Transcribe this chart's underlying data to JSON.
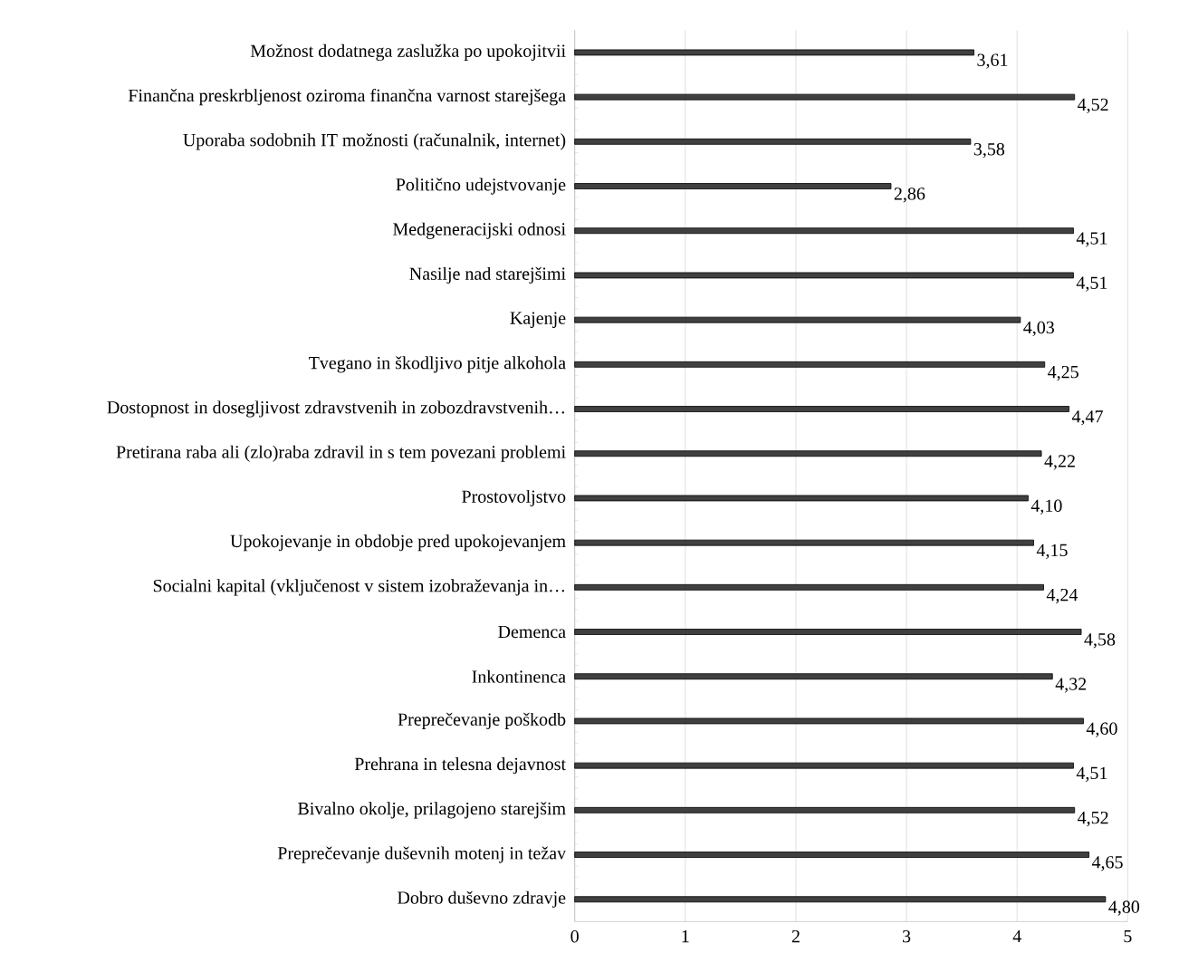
{
  "chart_data": {
    "type": "bar",
    "orientation": "horizontal",
    "categories": [
      "Možnost dodatnega zaslužka po upokojitvii",
      "Finančna preskrbljenost oziroma finančna varnost starejšega",
      "Uporaba sodobnih IT možnosti (računalnik, internet)",
      "Politično udejstvovanje",
      "Medgeneracijski odnosi",
      "Nasilje nad starejšimi",
      "Kajenje",
      "Tvegano in škodljivo pitje alkohola",
      "Dostopnost in dosegljivost  zdravstvenih in zobozdravstvenih…",
      "Pretirana raba ali (zlo)raba zdravil in s tem povezani problemi",
      "Prostovoljstvo",
      "Upokojevanje in obdobje pred upokojevanjem",
      "Socialni kapital (vključenost v sistem izobraževanja in…",
      "Demenca",
      "Inkontinenca",
      "Preprečevanje poškodb",
      "Prehrana in telesna dejavnost",
      "Bivalno okolje, prilagojeno starejšim",
      "Preprečevanje duševnih motenj in težav",
      "Dobro duševno zdravje"
    ],
    "values": [
      3.61,
      4.52,
      3.58,
      2.86,
      4.51,
      4.51,
      4.03,
      4.25,
      4.47,
      4.22,
      4.1,
      4.15,
      4.24,
      4.58,
      4.32,
      4.6,
      4.51,
      4.52,
      4.65,
      4.8
    ],
    "value_labels": [
      "3,61",
      "4,52",
      "3,58",
      "2,86",
      "4,51",
      "4,51",
      "4,03",
      "4,25",
      "4,47",
      "4,22",
      "4,10",
      "4,15",
      "4,24",
      "4,58",
      "4,32",
      "4,60",
      "4,51",
      "4,52",
      "4,65",
      "4,80"
    ],
    "color": "#404040",
    "xlim": [
      0,
      5
    ],
    "xticks": [
      0,
      1,
      2,
      3,
      4,
      5
    ],
    "grid": "x"
  }
}
